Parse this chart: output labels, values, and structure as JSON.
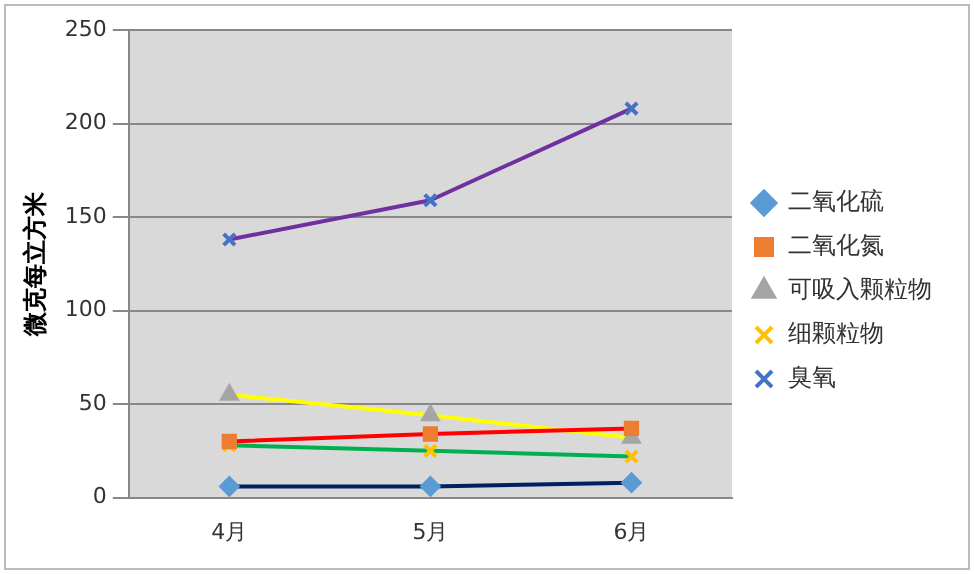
{
  "chart_data": {
    "type": "line",
    "ylabel": "微克每立方米",
    "categories": [
      "4月",
      "5月",
      "6月"
    ],
    "series": [
      {
        "name": "二氧化硫",
        "color": "#002060",
        "marker": "diamond",
        "colors": [
          "#5b9bd5",
          "#5b9bd5",
          "#5b9bd5"
        ],
        "values": [
          6,
          6,
          8
        ]
      },
      {
        "name": "二氧化氮",
        "color": "#ff0000",
        "marker": "square",
        "colors": [
          "#ed7d31",
          "#ed7d31",
          "#ed7d31"
        ],
        "values": [
          30,
          34,
          37
        ]
      },
      {
        "name": "可吸入颗粒物",
        "color": "#ffff00",
        "marker": "triangle",
        "colors": [
          "#a5a5a5",
          "#a5a5a5",
          "#a5a5a5"
        ],
        "values": [
          55,
          44,
          32
        ]
      },
      {
        "name": "细颗粒物",
        "color": "#00b050",
        "marker": "cross",
        "colors": [
          "#ffc000",
          "#ffc000",
          "#ffc000"
        ],
        "values": [
          28,
          25,
          22
        ]
      },
      {
        "name": "臭氧",
        "color": "#7030a0",
        "marker": "cross",
        "colors": [
          "#4472c4",
          "#4472c4",
          "#4472c4"
        ],
        "values": [
          138,
          159,
          208
        ]
      }
    ],
    "ylim": [
      0,
      250
    ],
    "yticks": [
      0,
      50,
      100,
      150,
      200,
      250
    ],
    "grid": "y",
    "legend": "right"
  }
}
